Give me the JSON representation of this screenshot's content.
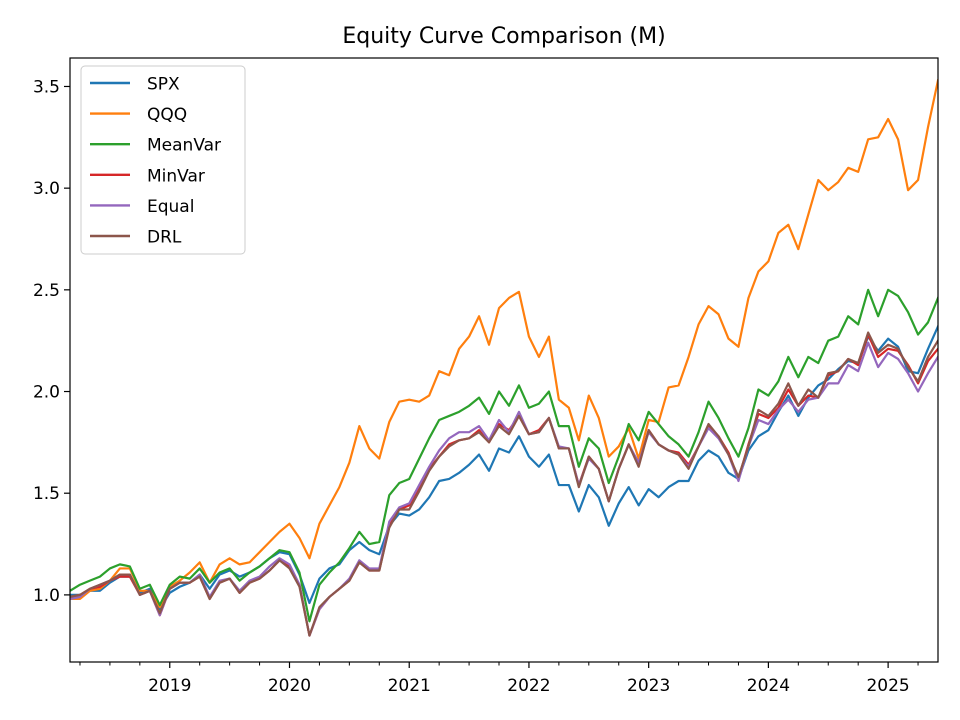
{
  "chart_data": {
    "type": "line",
    "title": "Equity Curve Comparison (M)",
    "xlabel": "",
    "ylabel": "",
    "x_start": "2018-03",
    "x_end": "2025-06",
    "x_ticks": [
      "2019",
      "2020",
      "2021",
      "2022",
      "2023",
      "2024",
      "2025"
    ],
    "y_ticks": [
      "1.0",
      "1.5",
      "2.0",
      "2.5",
      "3.0",
      "3.5"
    ],
    "ylim": [
      0.67,
      3.64
    ],
    "grid": false,
    "legend_position": "upper-left",
    "x": [
      "2018-03",
      "2018-04",
      "2018-05",
      "2018-06",
      "2018-07",
      "2018-08",
      "2018-09",
      "2018-10",
      "2018-11",
      "2018-12",
      "2019-01",
      "2019-02",
      "2019-03",
      "2019-04",
      "2019-05",
      "2019-06",
      "2019-07",
      "2019-08",
      "2019-09",
      "2019-10",
      "2019-11",
      "2019-12",
      "2020-01",
      "2020-02",
      "2020-03",
      "2020-04",
      "2020-05",
      "2020-06",
      "2020-07",
      "2020-08",
      "2020-09",
      "2020-10",
      "2020-11",
      "2020-12",
      "2021-01",
      "2021-02",
      "2021-03",
      "2021-04",
      "2021-05",
      "2021-06",
      "2021-07",
      "2021-08",
      "2021-09",
      "2021-10",
      "2021-11",
      "2021-12",
      "2022-01",
      "2022-02",
      "2022-03",
      "2022-04",
      "2022-05",
      "2022-06",
      "2022-07",
      "2022-08",
      "2022-09",
      "2022-10",
      "2022-11",
      "2022-12",
      "2023-01",
      "2023-02",
      "2023-03",
      "2023-04",
      "2023-05",
      "2023-06",
      "2023-07",
      "2023-08",
      "2023-09",
      "2023-10",
      "2023-11",
      "2023-12",
      "2024-01",
      "2024-02",
      "2024-03",
      "2024-04",
      "2024-05",
      "2024-06",
      "2024-07",
      "2024-08",
      "2024-09",
      "2024-10",
      "2024-11",
      "2024-12",
      "2025-01",
      "2025-02",
      "2025-03",
      "2025-04",
      "2025-05",
      "2025-06"
    ],
    "series": [
      {
        "name": "SPX",
        "color": "#1f77b4",
        "values": [
          1.0,
          1.0,
          1.02,
          1.02,
          1.06,
          1.09,
          1.09,
          1.01,
          1.03,
          0.93,
          1.01,
          1.04,
          1.06,
          1.1,
          1.03,
          1.1,
          1.12,
          1.09,
          1.11,
          1.14,
          1.18,
          1.21,
          1.2,
          1.1,
          0.96,
          1.08,
          1.13,
          1.15,
          1.22,
          1.26,
          1.22,
          1.2,
          1.34,
          1.4,
          1.39,
          1.42,
          1.48,
          1.56,
          1.57,
          1.6,
          1.64,
          1.69,
          1.61,
          1.72,
          1.7,
          1.78,
          1.68,
          1.63,
          1.69,
          1.54,
          1.54,
          1.41,
          1.54,
          1.48,
          1.34,
          1.45,
          1.53,
          1.44,
          1.52,
          1.48,
          1.53,
          1.56,
          1.56,
          1.66,
          1.71,
          1.68,
          1.6,
          1.57,
          1.71,
          1.78,
          1.81,
          1.9,
          1.98,
          1.88,
          1.97,
          2.03,
          2.06,
          2.11,
          2.15,
          2.14,
          2.27,
          2.2,
          2.26,
          2.22,
          2.1,
          2.09,
          2.21,
          2.32
        ]
      },
      {
        "name": "QQQ",
        "color": "#ff7f0e",
        "values": [
          0.98,
          0.98,
          1.02,
          1.03,
          1.07,
          1.13,
          1.13,
          1.02,
          1.02,
          0.94,
          1.04,
          1.07,
          1.11,
          1.16,
          1.06,
          1.15,
          1.18,
          1.15,
          1.16,
          1.21,
          1.26,
          1.31,
          1.35,
          1.28,
          1.18,
          1.35,
          1.44,
          1.53,
          1.65,
          1.83,
          1.72,
          1.67,
          1.85,
          1.95,
          1.96,
          1.95,
          1.98,
          2.1,
          2.08,
          2.21,
          2.27,
          2.37,
          2.23,
          2.41,
          2.46,
          2.49,
          2.27,
          2.17,
          2.27,
          1.96,
          1.92,
          1.76,
          1.98,
          1.87,
          1.68,
          1.73,
          1.82,
          1.67,
          1.86,
          1.85,
          2.02,
          2.03,
          2.17,
          2.33,
          2.42,
          2.38,
          2.26,
          2.22,
          2.46,
          2.59,
          2.64,
          2.78,
          2.82,
          2.7,
          2.87,
          3.04,
          2.99,
          3.03,
          3.1,
          3.08,
          3.24,
          3.25,
          3.34,
          3.24,
          2.99,
          3.04,
          3.3,
          3.53
        ]
      },
      {
        "name": "MeanVar",
        "color": "#2ca02c",
        "values": [
          1.02,
          1.05,
          1.07,
          1.09,
          1.13,
          1.15,
          1.14,
          1.03,
          1.05,
          0.95,
          1.05,
          1.09,
          1.08,
          1.13,
          1.06,
          1.11,
          1.13,
          1.07,
          1.11,
          1.14,
          1.18,
          1.22,
          1.21,
          1.11,
          0.87,
          1.05,
          1.11,
          1.16,
          1.23,
          1.31,
          1.25,
          1.26,
          1.49,
          1.55,
          1.57,
          1.67,
          1.77,
          1.86,
          1.88,
          1.9,
          1.93,
          1.97,
          1.89,
          2.0,
          1.93,
          2.03,
          1.92,
          1.94,
          2.0,
          1.83,
          1.83,
          1.63,
          1.77,
          1.72,
          1.55,
          1.68,
          1.84,
          1.76,
          1.9,
          1.84,
          1.78,
          1.74,
          1.68,
          1.8,
          1.95,
          1.87,
          1.77,
          1.68,
          1.82,
          2.01,
          1.98,
          2.05,
          2.17,
          2.07,
          2.17,
          2.14,
          2.25,
          2.27,
          2.37,
          2.33,
          2.5,
          2.37,
          2.5,
          2.47,
          2.39,
          2.28,
          2.34,
          2.46
        ]
      },
      {
        "name": "MinVar",
        "color": "#d62728",
        "values": [
          0.99,
          1.0,
          1.03,
          1.04,
          1.07,
          1.09,
          1.09,
          1.0,
          1.02,
          0.9,
          1.03,
          1.06,
          1.06,
          1.09,
          0.98,
          1.06,
          1.08,
          1.01,
          1.06,
          1.08,
          1.12,
          1.17,
          1.14,
          1.05,
          0.8,
          0.93,
          0.99,
          1.03,
          1.07,
          1.16,
          1.12,
          1.12,
          1.34,
          1.42,
          1.44,
          1.53,
          1.62,
          1.68,
          1.74,
          1.76,
          1.77,
          1.81,
          1.75,
          1.84,
          1.81,
          1.88,
          1.79,
          1.81,
          1.87,
          1.72,
          1.72,
          1.54,
          1.68,
          1.62,
          1.46,
          1.62,
          1.74,
          1.64,
          1.81,
          1.74,
          1.71,
          1.7,
          1.64,
          1.73,
          1.83,
          1.78,
          1.7,
          1.57,
          1.74,
          1.89,
          1.87,
          1.92,
          2.01,
          1.93,
          1.98,
          1.97,
          2.08,
          2.1,
          2.16,
          2.13,
          2.28,
          2.17,
          2.21,
          2.2,
          2.13,
          2.04,
          2.15,
          2.21
        ]
      },
      {
        "name": "Equal",
        "color": "#9467bd",
        "values": [
          0.98,
          0.99,
          1.03,
          1.05,
          1.07,
          1.1,
          1.1,
          1.0,
          1.02,
          0.9,
          1.03,
          1.06,
          1.06,
          1.1,
          0.99,
          1.07,
          1.08,
          1.02,
          1.07,
          1.09,
          1.14,
          1.18,
          1.15,
          1.05,
          0.8,
          0.93,
          0.99,
          1.03,
          1.08,
          1.17,
          1.13,
          1.13,
          1.36,
          1.43,
          1.45,
          1.54,
          1.63,
          1.71,
          1.77,
          1.8,
          1.8,
          1.83,
          1.76,
          1.86,
          1.8,
          1.9,
          1.79,
          1.8,
          1.87,
          1.73,
          1.72,
          1.54,
          1.67,
          1.62,
          1.46,
          1.62,
          1.74,
          1.65,
          1.8,
          1.74,
          1.71,
          1.69,
          1.63,
          1.73,
          1.82,
          1.77,
          1.69,
          1.56,
          1.73,
          1.86,
          1.84,
          1.91,
          1.96,
          1.9,
          1.96,
          1.97,
          2.04,
          2.04,
          2.13,
          2.1,
          2.24,
          2.12,
          2.19,
          2.16,
          2.09,
          2.0,
          2.09,
          2.17
        ]
      },
      {
        "name": "DRL",
        "color": "#8c564b",
        "values": [
          0.99,
          1.0,
          1.03,
          1.05,
          1.07,
          1.1,
          1.1,
          1.0,
          1.02,
          0.91,
          1.03,
          1.06,
          1.06,
          1.09,
          0.98,
          1.06,
          1.08,
          1.01,
          1.06,
          1.08,
          1.12,
          1.17,
          1.13,
          1.04,
          0.8,
          0.94,
          0.99,
          1.03,
          1.07,
          1.16,
          1.12,
          1.12,
          1.33,
          1.42,
          1.42,
          1.51,
          1.61,
          1.68,
          1.73,
          1.76,
          1.77,
          1.8,
          1.75,
          1.83,
          1.79,
          1.88,
          1.79,
          1.8,
          1.87,
          1.72,
          1.72,
          1.53,
          1.68,
          1.62,
          1.46,
          1.62,
          1.74,
          1.63,
          1.81,
          1.74,
          1.71,
          1.69,
          1.62,
          1.73,
          1.84,
          1.78,
          1.69,
          1.58,
          1.73,
          1.91,
          1.88,
          1.94,
          2.04,
          1.93,
          2.01,
          1.97,
          2.09,
          2.1,
          2.16,
          2.14,
          2.29,
          2.19,
          2.23,
          2.21,
          2.12,
          2.05,
          2.17,
          2.25
        ]
      }
    ]
  }
}
